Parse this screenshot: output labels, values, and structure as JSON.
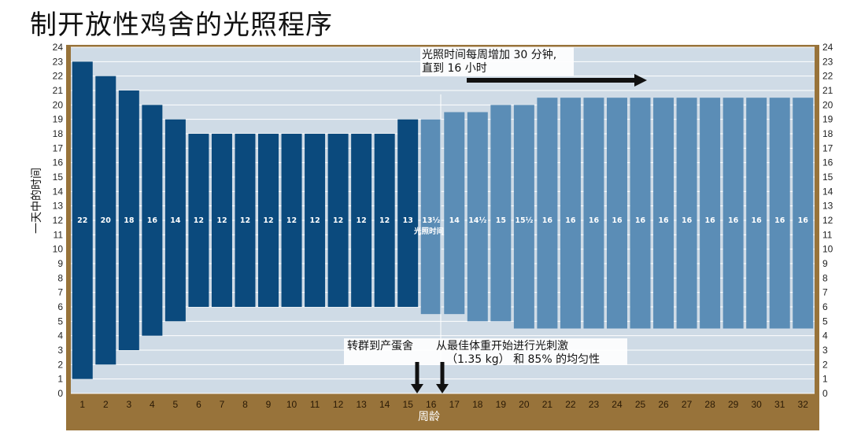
{
  "title": "制开放性鸡舍的光照程序",
  "chart_data": {
    "type": "bar",
    "subtype": "floating-range",
    "title": "制开放性鸡舍的光照程序",
    "ylabel": "一天中的时间",
    "xlabel": "周龄",
    "ylim": [
      0,
      24
    ],
    "yticks": [
      0,
      1,
      2,
      3,
      4,
      5,
      6,
      7,
      8,
      9,
      10,
      11,
      12,
      13,
      14,
      15,
      16,
      17,
      18,
      19,
      20,
      21,
      22,
      23,
      24
    ],
    "y_axis_both_sides": true,
    "grid": true,
    "categories": [
      "1",
      "2",
      "3",
      "4",
      "5",
      "6",
      "7",
      "8",
      "9",
      "10",
      "11",
      "12",
      "13",
      "14",
      "15",
      "16",
      "17",
      "18",
      "19",
      "20",
      "21",
      "22",
      "23",
      "24",
      "25",
      "26",
      "27",
      "28",
      "29",
      "30",
      "31",
      "32"
    ],
    "series": [
      {
        "name": "光照时间",
        "start": [
          1,
          2,
          3,
          4,
          5,
          6,
          6,
          6,
          6,
          6,
          6,
          6,
          6,
          6,
          6,
          5.5,
          5.5,
          5,
          5,
          4.5,
          4.5,
          4.5,
          4.5,
          4.5,
          4.5,
          4.5,
          4.5,
          4.5,
          4.5,
          4.5,
          4.5,
          4.5
        ],
        "end": [
          23,
          22,
          21,
          20,
          19,
          18,
          18,
          18,
          18,
          18,
          18,
          18,
          18,
          18,
          19,
          19,
          19.5,
          19.5,
          20,
          20,
          20.5,
          20.5,
          20.5,
          20.5,
          20.5,
          20.5,
          20.5,
          20.5,
          20.5,
          20.5,
          20.5,
          20.5
        ],
        "values": [
          22,
          20,
          18,
          16,
          14,
          12,
          12,
          12,
          12,
          12,
          12,
          12,
          12,
          12,
          13,
          13.5,
          14,
          14.5,
          15,
          15.5,
          16,
          16,
          16,
          16,
          16,
          16,
          16,
          16,
          16,
          16,
          16,
          16
        ],
        "labels": [
          "22",
          "20",
          "18",
          "16",
          "14",
          "12",
          "12",
          "12",
          "12",
          "12",
          "12",
          "12",
          "12",
          "12",
          "13",
          "13½",
          "14",
          "14½",
          "15",
          "15½",
          "16",
          "16",
          "16",
          "16",
          "16",
          "16",
          "16",
          "16",
          "16",
          "16",
          "16",
          "16"
        ]
      }
    ],
    "colors": {
      "dark_bar": "#0b4a7d",
      "light_bar": "#5b8db6",
      "plot_bg": "#cfdbe6",
      "axis_band": "#98733a",
      "grid": "#ffffff"
    },
    "color_switch_after_week": 15,
    "bar_center_label": "光照时间",
    "annotations": [
      {
        "text_lines": [
          "光照时间每周增加 30 分钟,",
          "直到 16 小时"
        ],
        "arrow": "right"
      },
      {
        "text_lines": [
          "转群到产蛋舍"
        ],
        "arrow": "down",
        "week": 15
      },
      {
        "text_lines": [
          "从最佳体重开始进行光刺激",
          "（1.35 kg） 和 85% 的均匀性"
        ],
        "arrow": "down",
        "week": 16
      }
    ]
  }
}
